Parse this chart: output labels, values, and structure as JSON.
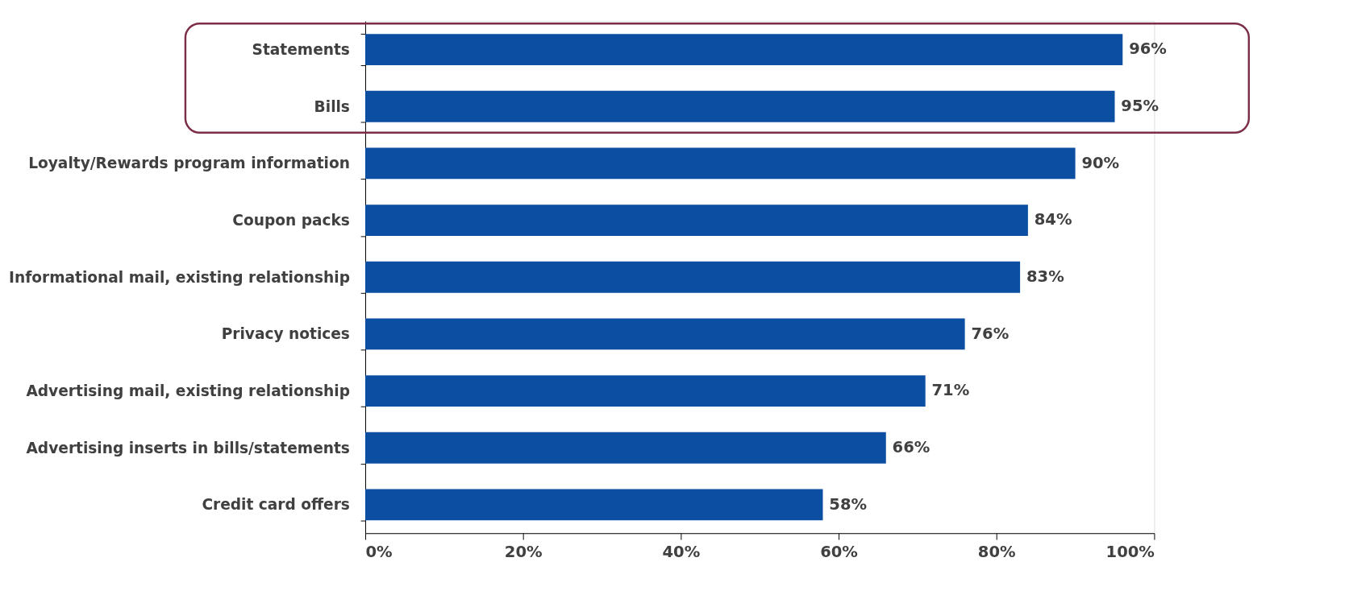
{
  "chart_data": {
    "type": "bar",
    "orientation": "horizontal",
    "categories": [
      "Statements",
      "Bills",
      "Loyalty/Rewards program information",
      "Coupon packs",
      "Informational mail, existing relationship",
      "Privacy notices",
      "Advertising mail, existing relationship",
      "Advertising inserts in bills/statements",
      "Credit card offers"
    ],
    "values": [
      96,
      95,
      90,
      84,
      83,
      76,
      71,
      66,
      58
    ],
    "value_labels": [
      "96%",
      "95%",
      "90%",
      "84%",
      "83%",
      "76%",
      "71%",
      "66%",
      "58%"
    ],
    "color": "#0b4ea2",
    "xlim": [
      0,
      100
    ],
    "xticks": [
      {
        "value": 0,
        "label": "0%"
      },
      {
        "value": 20,
        "label": "20%"
      },
      {
        "value": 40,
        "label": "40%"
      },
      {
        "value": 60,
        "label": "60%"
      },
      {
        "value": 80,
        "label": "80%"
      },
      {
        "value": 100,
        "label": "100%"
      }
    ],
    "grid": false
  }
}
